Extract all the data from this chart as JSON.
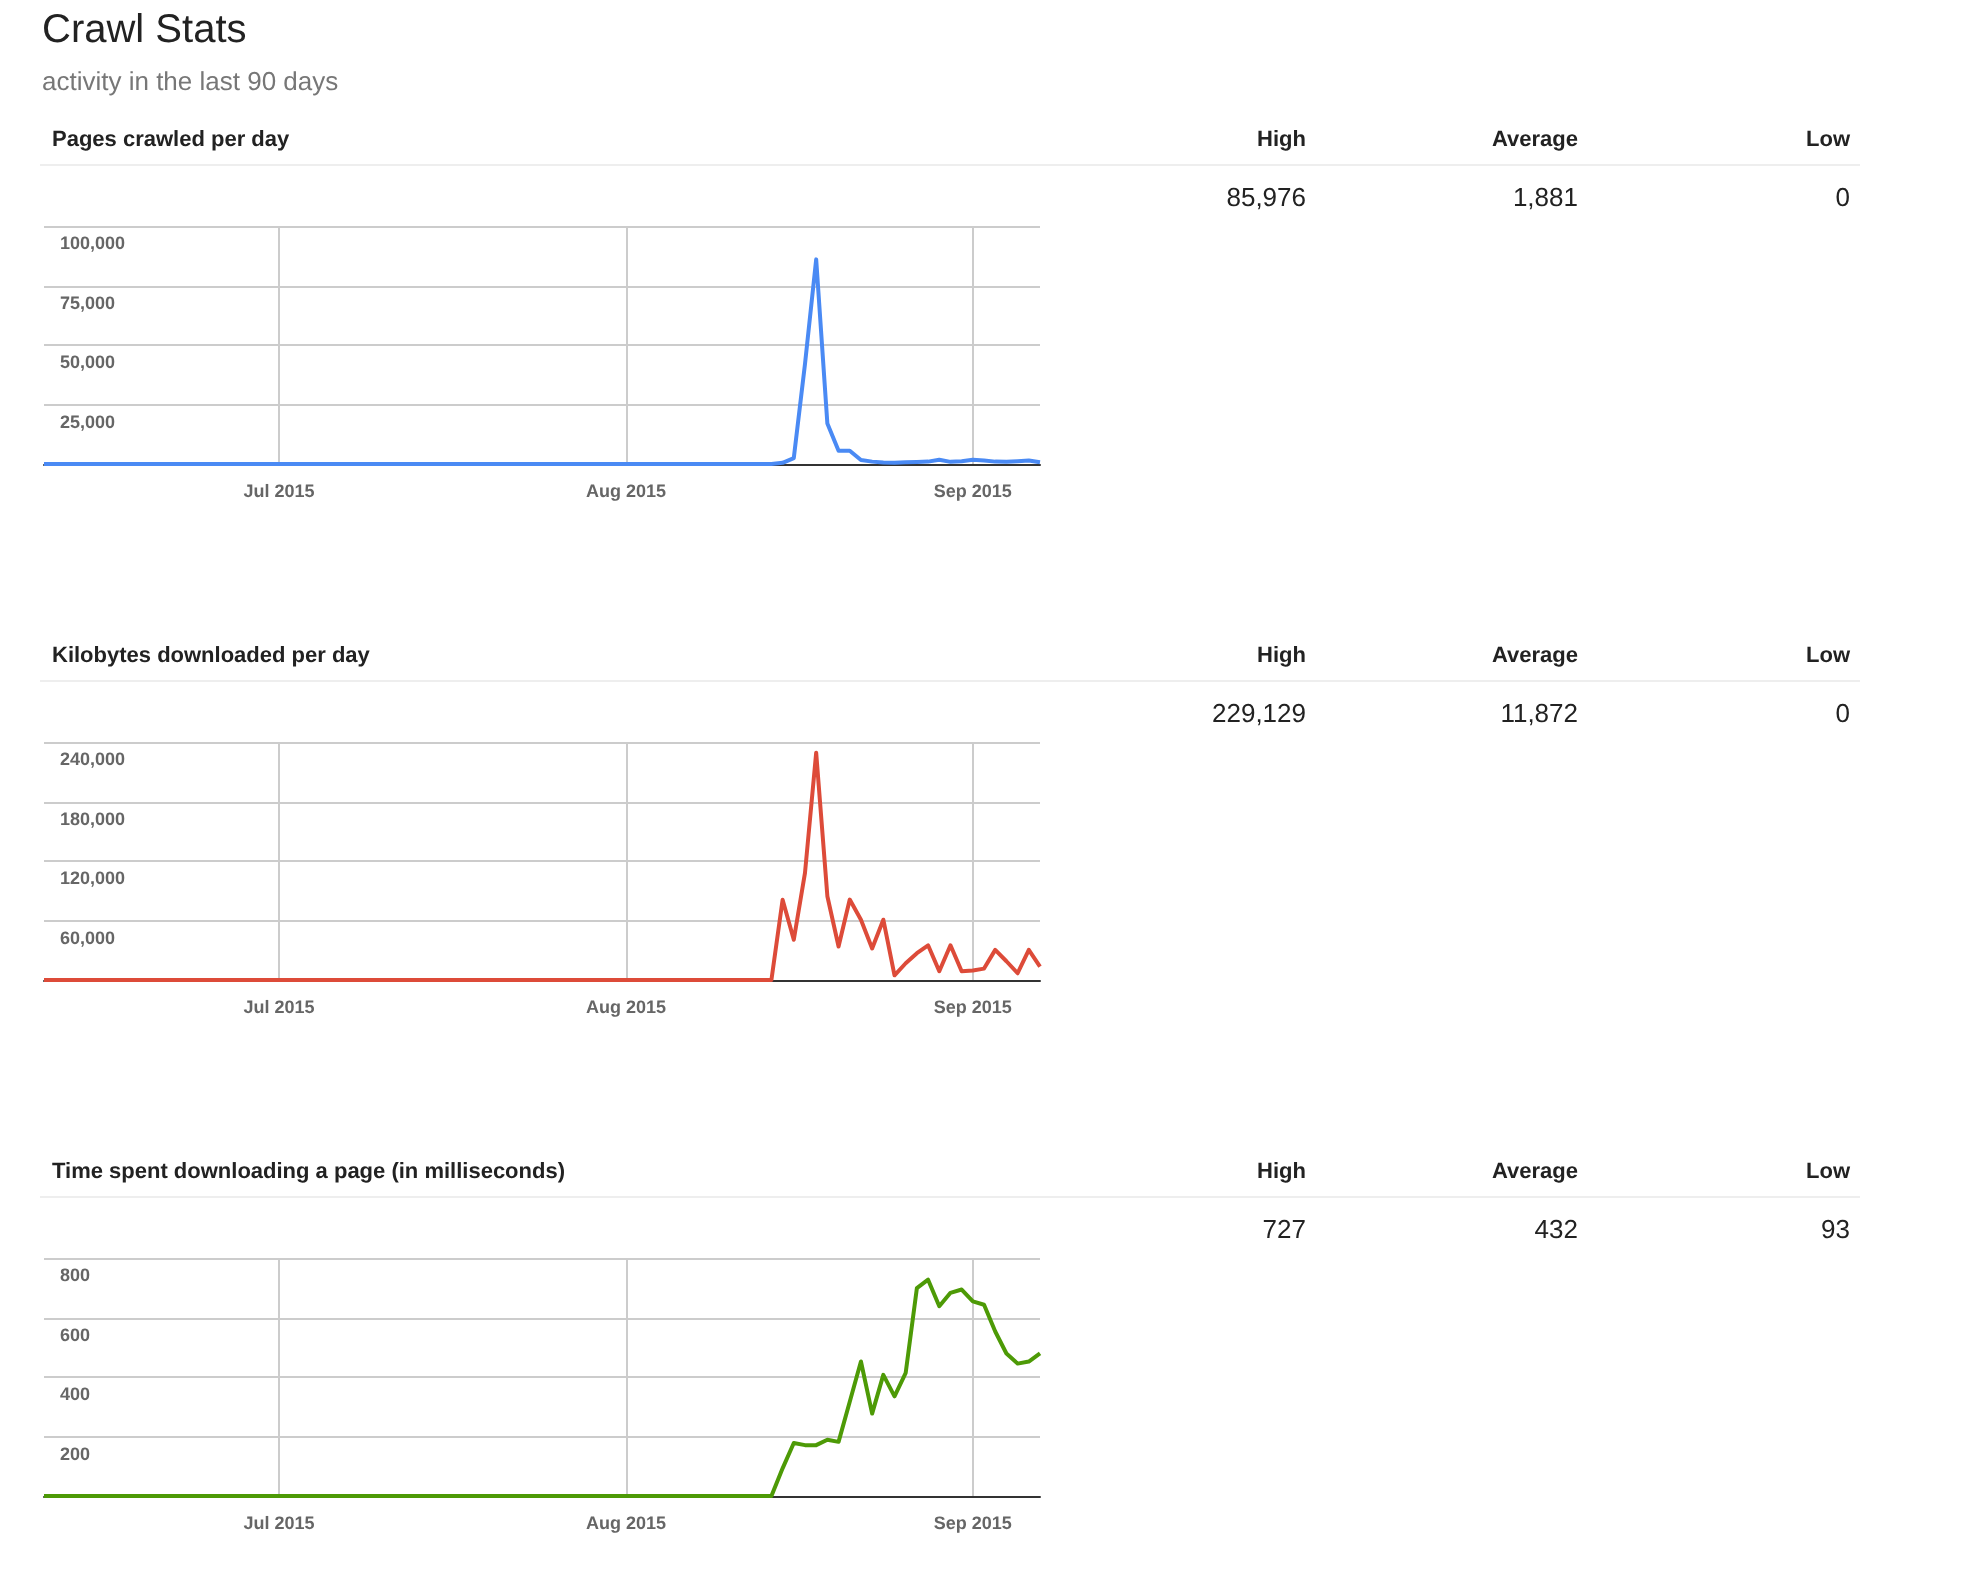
{
  "chart_data": [
    {
      "type": "line",
      "title": "Crawl Stats",
      "subtitle": "activity in the last 90 days",
      "ylabel": "Pages crawled per day",
      "annotations": [
        "High",
        "Average",
        "Low",
        "85,976",
        "1,881",
        "0"
      ],
      "x": [
        "2015-06-10",
        "2015-08-14",
        "2015-08-15",
        "2015-08-16",
        "2015-08-17",
        "2015-08-18",
        "2015-08-19",
        "2015-08-20",
        "2015-08-21",
        "2015-08-22",
        "2015-08-23",
        "2015-08-24",
        "2015-08-25",
        "2015-08-26",
        "2015-08-27",
        "2015-08-28",
        "2015-08-29",
        "2015-08-30",
        "2015-08-31",
        "2015-09-01",
        "2015-09-02",
        "2015-09-03",
        "2015-09-04",
        "2015-09-05",
        "2015-09-06",
        "2015-09-07"
      ],
      "series": [
        {
          "color": "#4a8af4",
          "values": [
            0,
            0,
            500,
            2500,
            42000,
            85976,
            17000,
            5600,
            5600,
            1700,
            1000,
            600,
            500,
            700,
            800,
            1000,
            1800,
            900,
            1200,
            1800,
            1500,
            1000,
            900,
            1200,
            1500,
            700
          ]
        }
      ],
      "xlim": [
        "2015-06-10",
        "2015-09-07"
      ],
      "xticks": [
        {
          "value": "2015-07-01",
          "label": "Jul 2015"
        },
        {
          "value": "2015-08-01",
          "label": "Aug 2015"
        },
        {
          "value": "2015-09-01",
          "label": "Sep 2015"
        }
      ],
      "ylim": [
        0,
        100000
      ],
      "yticks": [
        {
          "value": 0,
          "label": null
        },
        {
          "value": 25000,
          "label": "25,000"
        },
        {
          "value": 50000,
          "label": "50,000"
        },
        {
          "value": 75000,
          "label": "75,000"
        },
        {
          "value": 100000,
          "label": "100,000"
        }
      ],
      "grid": true
    },
    {
      "type": "line",
      "ylabel": "Kilobytes downloaded per day",
      "annotations": [
        "High",
        "Average",
        "Low",
        "229,129",
        "11,872",
        "0"
      ],
      "x": [
        "2015-06-10",
        "2015-08-14",
        "2015-08-15",
        "2015-08-16",
        "2015-08-17",
        "2015-08-18",
        "2015-08-19",
        "2015-08-20",
        "2015-08-21",
        "2015-08-22",
        "2015-08-23",
        "2015-08-24",
        "2015-08-25",
        "2015-08-26",
        "2015-08-27",
        "2015-08-28",
        "2015-08-29",
        "2015-08-30",
        "2015-08-31",
        "2015-09-01",
        "2015-09-02",
        "2015-09-03",
        "2015-09-04",
        "2015-09-05",
        "2015-09-06",
        "2015-09-07"
      ],
      "series": [
        {
          "color": "#dd4b39",
          "values": [
            0,
            0,
            81000,
            40600,
            108000,
            229129,
            84500,
            33800,
            81100,
            60800,
            31800,
            60800,
            4700,
            16900,
            27000,
            35000,
            8800,
            35000,
            8800,
            9500,
            11500,
            30400,
            18900,
            6800,
            30400,
            13500
          ]
        }
      ],
      "xlim": [
        "2015-06-10",
        "2015-09-07"
      ],
      "xticks": [
        {
          "value": "2015-07-01",
          "label": "Jul 2015"
        },
        {
          "value": "2015-08-01",
          "label": "Aug 2015"
        },
        {
          "value": "2015-09-01",
          "label": "Sep 2015"
        }
      ],
      "ylim": [
        0,
        240000
      ],
      "yticks": [
        {
          "value": 0,
          "label": null
        },
        {
          "value": 60000,
          "label": "60,000"
        },
        {
          "value": 120000,
          "label": "120,000"
        },
        {
          "value": 180000,
          "label": "180,000"
        },
        {
          "value": 240000,
          "label": "240,000"
        }
      ],
      "grid": true
    },
    {
      "type": "line",
      "ylabel": "Time spent downloading a page (in milliseconds)",
      "annotations": [
        "High",
        "Average",
        "Low",
        "727",
        "432",
        "93"
      ],
      "x": [
        "2015-06-10",
        "2015-08-14",
        "2015-08-15",
        "2015-08-16",
        "2015-08-17",
        "2015-08-18",
        "2015-08-19",
        "2015-08-20",
        "2015-08-21",
        "2015-08-22",
        "2015-08-23",
        "2015-08-24",
        "2015-08-25",
        "2015-08-26",
        "2015-08-27",
        "2015-08-28",
        "2015-08-29",
        "2015-08-30",
        "2015-08-31",
        "2015-09-01",
        "2015-09-02",
        "2015-09-03",
        "2015-09-04",
        "2015-09-05",
        "2015-09-06",
        "2015-09-07"
      ],
      "series": [
        {
          "color": "#4d9a06",
          "values": [
            0,
            0,
            93,
            178,
            171,
            171,
            189,
            182,
            317,
            452,
            277,
            407,
            335,
            414,
            699,
            727,
            638,
            683,
            694,
            654,
            643,
            553,
            479,
            445,
            452,
            479
          ]
        }
      ],
      "xlim": [
        "2015-06-10",
        "2015-09-07"
      ],
      "xticks": [
        {
          "value": "2015-07-01",
          "label": "Jul 2015"
        },
        {
          "value": "2015-08-01",
          "label": "Aug 2015"
        },
        {
          "value": "2015-09-01",
          "label": "Sep 2015"
        }
      ],
      "ylim": [
        0,
        800
      ],
      "yticks": [
        {
          "value": 0,
          "label": null
        },
        {
          "value": 200,
          "label": "200"
        },
        {
          "value": 400,
          "label": "400"
        },
        {
          "value": 600,
          "label": "600"
        },
        {
          "value": 800,
          "label": "800"
        }
      ],
      "grid": true
    }
  ]
}
